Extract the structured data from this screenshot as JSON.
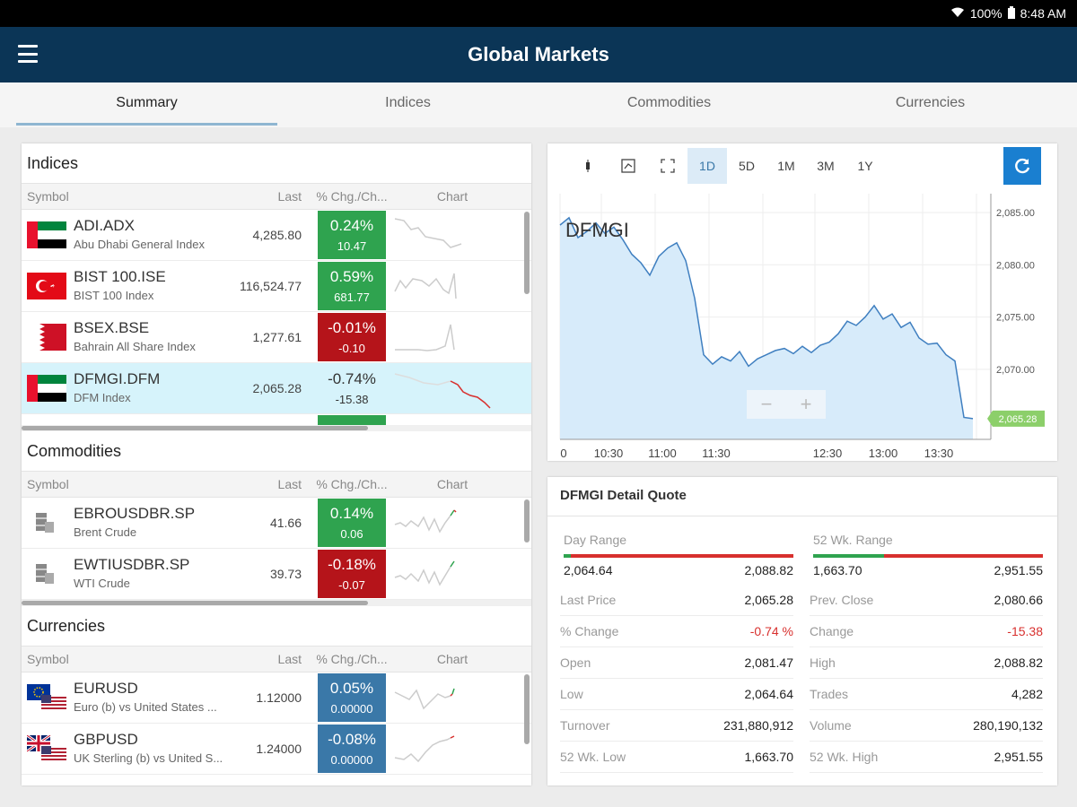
{
  "status": {
    "battery": "100%",
    "time": "8:48 AM"
  },
  "app": {
    "title": "Global Markets"
  },
  "tabs": [
    "Summary",
    "Indices",
    "Commodities",
    "Currencies"
  ],
  "columns": {
    "symbol": "Symbol",
    "last": "Last",
    "chg": "% Chg./Ch...",
    "chart": "Chart"
  },
  "indices": {
    "title": "Indices",
    "rows": [
      {
        "symbol": "ADI.ADX",
        "name": "Abu Dhabi General Index",
        "last": "4,285.80",
        "pct": "0.24%",
        "abs": "10.47",
        "dir": "up",
        "flag": "uae"
      },
      {
        "symbol": "BIST 100.ISE",
        "name": "BIST 100 Index",
        "last": "116,524.77",
        "pct": "0.59%",
        "abs": "681.77",
        "dir": "up",
        "flag": "turkey"
      },
      {
        "symbol": "BSEX.BSE",
        "name": "Bahrain All Share Index",
        "last": "1,277.61",
        "pct": "-0.01%",
        "abs": "-0.10",
        "dir": "down",
        "flag": "bahrain"
      },
      {
        "symbol": "DFMGI.DFM",
        "name": "DFM Index",
        "last": "2,065.28",
        "pct": "-0.74%",
        "abs": "-15.38",
        "dir": "neutral",
        "flag": "uae"
      }
    ]
  },
  "commodities": {
    "title": "Commodities",
    "rows": [
      {
        "symbol": "EBROUSDBR.SP",
        "name": "Brent Crude",
        "last": "41.66",
        "pct": "0.14%",
        "abs": "0.06",
        "dir": "up"
      },
      {
        "symbol": "EWTIUSDBR.SP",
        "name": "WTI Crude",
        "last": "39.73",
        "pct": "-0.18%",
        "abs": "-0.07",
        "dir": "down"
      }
    ]
  },
  "currencies": {
    "title": "Currencies",
    "rows": [
      {
        "symbol": "EURUSD",
        "name": "Euro (b) vs United States ...",
        "last": "1.12000",
        "pct": "0.05%",
        "abs": "0.00000",
        "dir": "blue"
      },
      {
        "symbol": "GBPUSD",
        "name": "UK Sterling (b) vs United S...",
        "last": "1.24000",
        "pct": "-0.08%",
        "abs": "0.00000",
        "dir": "blue"
      }
    ]
  },
  "chart_toolbar": {
    "ranges": [
      "1D",
      "5D",
      "1M",
      "3M",
      "1Y"
    ],
    "active": "1D"
  },
  "chart_data": {
    "type": "area",
    "title": "DFMGI",
    "x": [
      "10:00",
      "10:05",
      "10:10",
      "10:15",
      "10:20",
      "10:25",
      "10:30",
      "10:35",
      "10:40",
      "10:45",
      "10:50",
      "10:55",
      "11:00",
      "11:05",
      "11:10",
      "11:15",
      "11:20",
      "11:25",
      "11:30",
      "11:35",
      "11:40",
      "11:45",
      "11:50",
      "11:55",
      "12:00",
      "12:05",
      "12:10",
      "12:15",
      "12:20",
      "12:25",
      "12:30",
      "12:35",
      "12:40",
      "12:45",
      "12:50",
      "12:55",
      "13:00",
      "13:05",
      "13:10",
      "13:15",
      "13:20",
      "13:25",
      "13:30",
      "13:35",
      "13:40",
      "13:45",
      "13:50"
    ],
    "values": [
      2083.8,
      2084.5,
      2082.6,
      2083.2,
      2084.0,
      2083.0,
      2083.6,
      2082.4,
      2081.0,
      2080.2,
      2079.0,
      2080.8,
      2081.6,
      2082.1,
      2080.4,
      2076.8,
      2071.4,
      2070.5,
      2071.2,
      2070.8,
      2071.7,
      2070.3,
      2071.0,
      2071.4,
      2071.8,
      2072.0,
      2071.5,
      2072.2,
      2071.6,
      2072.3,
      2072.6,
      2073.4,
      2074.6,
      2074.2,
      2075.0,
      2076.1,
      2074.8,
      2075.3,
      2074.0,
      2074.5,
      2073.0,
      2072.4,
      2072.5,
      2071.4,
      2070.8,
      2065.4,
      2065.28
    ],
    "xticks": [
      "0",
      "10:30",
      "11:00",
      "11:30",
      "12:30",
      "13:00",
      "13:30"
    ],
    "yticks": [
      "2,085.00",
      "2,080.00",
      "2,075.00",
      "2,070.00"
    ],
    "ylim": [
      2063.3,
      2086.8
    ],
    "last_label": "2,065.28",
    "zoom_out": "−",
    "zoom_in": "+"
  },
  "quote": {
    "title": "DFMGI Detail Quote",
    "day_range": {
      "label": "Day Range",
      "low": "2,064.64",
      "high": "2,088.82",
      "position": 0.03
    },
    "wk52_range": {
      "label": "52 Wk. Range",
      "low": "1,663.70",
      "high": "2,951.55",
      "position": 0.31
    },
    "left": [
      {
        "k": "Last Price",
        "v": "2,065.28",
        "neg": false
      },
      {
        "k": "% Change",
        "v": "-0.74 %",
        "neg": true
      },
      {
        "k": "Open",
        "v": "2,081.47",
        "neg": false
      },
      {
        "k": "Low",
        "v": "2,064.64",
        "neg": false
      },
      {
        "k": "Turnover",
        "v": "231,880,912",
        "neg": false
      },
      {
        "k": "52 Wk. Low",
        "v": "1,663.70",
        "neg": false
      }
    ],
    "right": [
      {
        "k": "Prev. Close",
        "v": "2,080.66",
        "neg": false
      },
      {
        "k": "Change",
        "v": "-15.38",
        "neg": true
      },
      {
        "k": "High",
        "v": "2,088.82",
        "neg": false
      },
      {
        "k": "Trades",
        "v": "4,282",
        "neg": false
      },
      {
        "k": "Volume",
        "v": "280,190,132",
        "neg": false
      },
      {
        "k": "52 Wk. High",
        "v": "2,951.55",
        "neg": false
      }
    ]
  },
  "colors": {
    "header": "#0b3556",
    "up": "#2fa34f",
    "down": "#b5141a",
    "accent": "#1a7fd0"
  }
}
